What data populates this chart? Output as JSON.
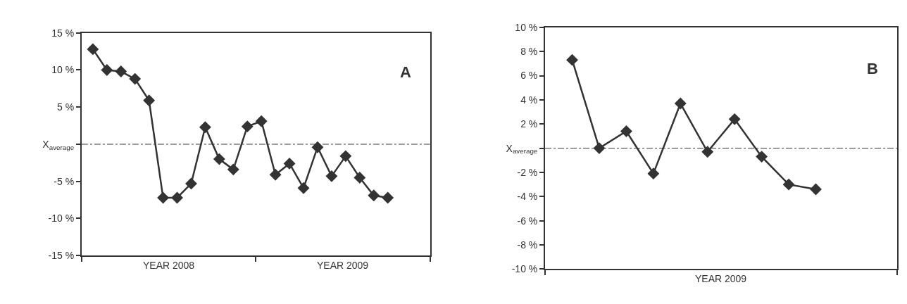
{
  "chart_data": [
    {
      "type": "line",
      "annotations": [
        "A",
        "YEAR 2008",
        "YEAR 2009"
      ],
      "marker": "diamond",
      "line_style": "solid",
      "tick_labels": "y",
      "categories": [
        null,
        null,
        null,
        null,
        null,
        null,
        null,
        null,
        null,
        null,
        null,
        null,
        null,
        null,
        null,
        null,
        null,
        null,
        null,
        null,
        null,
        null
      ],
      "series": [
        {
          "color": "#333333",
          "values": [
            12.8,
            10.0,
            9.8,
            8.8,
            5.9,
            -7.2,
            -7.2,
            -5.3,
            2.3,
            -2.0,
            -3.4,
            2.4,
            3.1,
            -4.1,
            -2.6,
            -5.9,
            -0.4,
            -4.3,
            -1.6,
            -4.5,
            -6.9,
            -7.2
          ]
        }
      ],
      "ylim": [
        -15,
        15
      ],
      "yticks": [
        {
          "value": 15,
          "label": "15 %"
        },
        {
          "value": 10,
          "label": "10 %"
        },
        {
          "value": 5,
          "label": "5 %"
        },
        {
          "value": 0,
          "label": "X$_{average}$"
        },
        {
          "value": -5,
          "label": "-5 %"
        },
        {
          "value": -10,
          "label": "-10 %"
        },
        {
          "value": -15,
          "label": "-15 %"
        }
      ],
      "ref_lines": [
        {
          "axis": "y",
          "value": 0,
          "color": "#333333",
          "line_style": "dashdot"
        }
      ]
    },
    {
      "type": "line",
      "annotations": [
        "B",
        "YEAR 2009"
      ],
      "marker": "diamond",
      "line_style": "solid",
      "tick_labels": "y",
      "categories": [
        null,
        null,
        null,
        null,
        null,
        null,
        null,
        null,
        null,
        null
      ],
      "series": [
        {
          "color": "#333333",
          "values": [
            7.3,
            0.0,
            1.4,
            -2.1,
            3.7,
            -0.3,
            2.4,
            -0.7,
            -3.0,
            -3.4
          ]
        }
      ],
      "ylim": [
        -10,
        10
      ],
      "yticks": [
        {
          "value": 10,
          "label": "10 %"
        },
        {
          "value": 8,
          "label": "8 %"
        },
        {
          "value": 6,
          "label": "6 %"
        },
        {
          "value": 4,
          "label": "4 %"
        },
        {
          "value": 2,
          "label": "2 %"
        },
        {
          "value": 0,
          "label": "X$_{average}$"
        },
        {
          "value": -2,
          "label": "-2 %"
        },
        {
          "value": -4,
          "label": "-4 %"
        },
        {
          "value": -6,
          "label": "-6 %"
        },
        {
          "value": -8,
          "label": "-8 %"
        },
        {
          "value": -10,
          "label": "-10 %"
        }
      ],
      "ref_lines": [
        {
          "axis": "y",
          "value": 0,
          "color": "#333333",
          "line_style": "dashdot"
        }
      ]
    }
  ]
}
